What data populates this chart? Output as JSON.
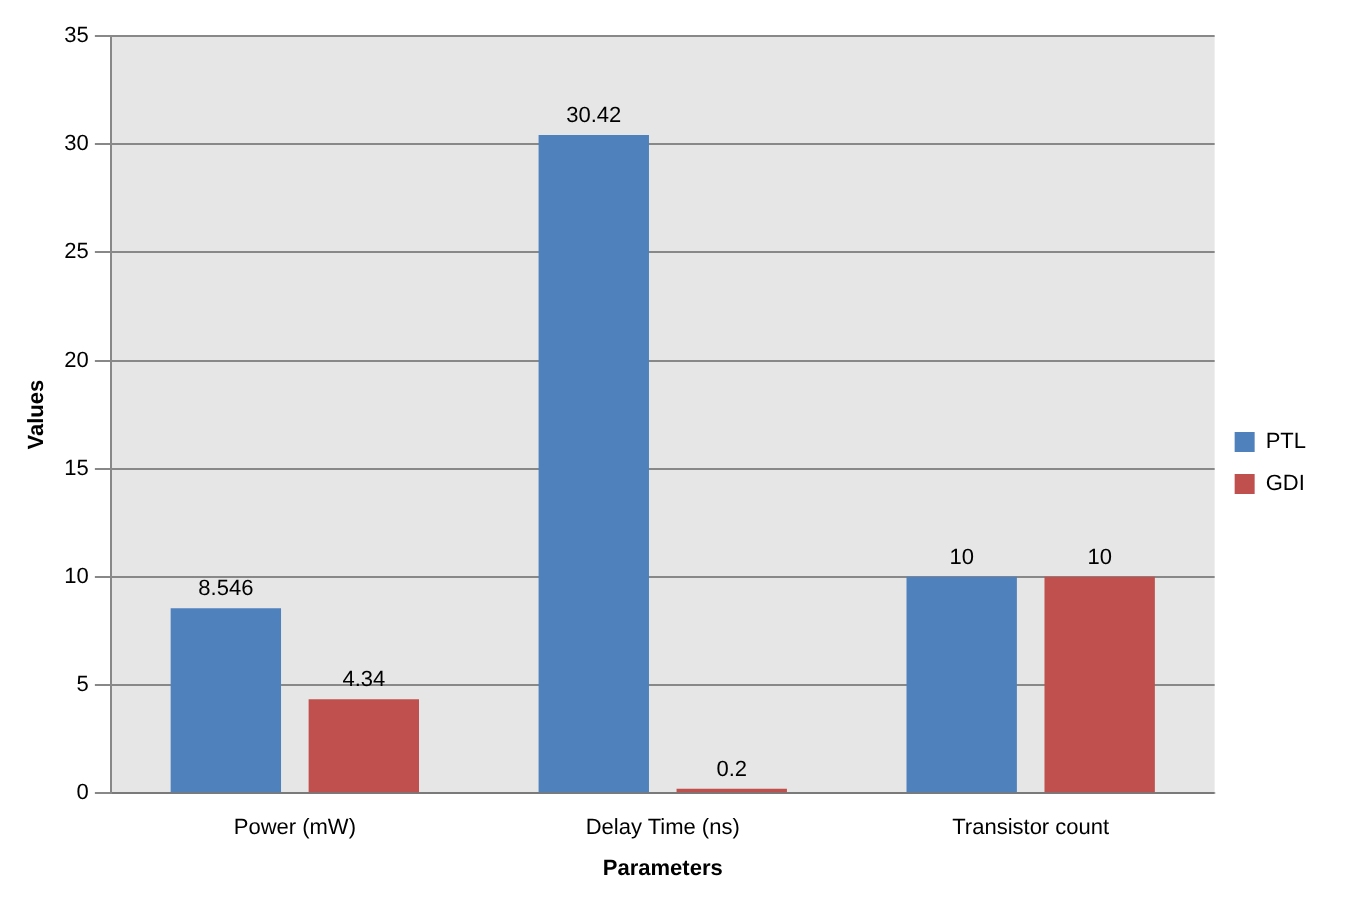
{
  "chart_data": {
    "type": "bar",
    "xlabel": "Parameters",
    "ylabel": "Values",
    "categories": [
      "Power (mW)",
      "Delay Time (ns)",
      "Transistor count"
    ],
    "series": [
      {
        "name": "PTL",
        "color": "#4f81bd",
        "values": [
          8.546,
          30.42,
          10
        ]
      },
      {
        "name": "GDI",
        "color": "#c0504d",
        "values": [
          4.34,
          0.2,
          10
        ]
      }
    ],
    "ylim": [
      0,
      35
    ],
    "yticks": [
      0,
      5,
      10,
      15,
      20,
      25,
      30,
      35
    ],
    "grid": "y",
    "legend": "right",
    "data_labels": true
  }
}
